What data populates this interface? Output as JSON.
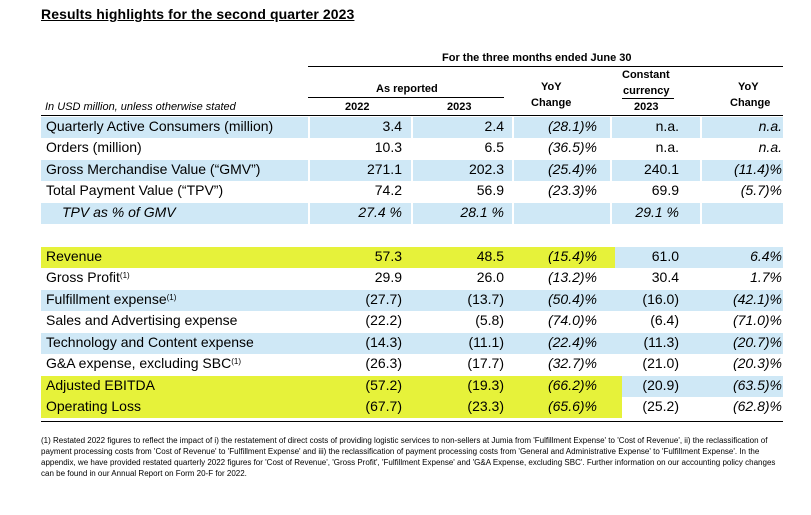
{
  "title": "Results highlights for the second quarter 2023",
  "header": {
    "period": "For the three months ended June 30",
    "as_reported": "As reported",
    "yoy_change_line1": "YoY",
    "yoy_change_line2": "Change",
    "constant_line1": "Constant",
    "constant_line2": "currency",
    "unit_note": "In USD million, unless otherwise stated",
    "col_2022": "2022",
    "col_2023": "2023",
    "col_cc_2023": "2023"
  },
  "rows": [
    {
      "label": "Quarterly Active Consumers (million)",
      "sup": "",
      "v2022": "3.4",
      "v2023": "2.4",
      "yoy": "(28.1)%",
      "cc2023": "n.a.",
      "ccyoy": "n.a."
    },
    {
      "label": "Orders (million)",
      "sup": "",
      "v2022": "10.3",
      "v2023": "6.5",
      "yoy": "(36.5)%",
      "cc2023": "n.a.",
      "ccyoy": "n.a."
    },
    {
      "label": "Gross Merchandise Value (“GMV”)",
      "sup": "",
      "v2022": "271.1",
      "v2023": "202.3",
      "yoy": "(25.4)%",
      "cc2023": "240.1",
      "ccyoy": "(11.4)%"
    },
    {
      "label": "Total Payment Value (“TPV”)",
      "sup": "",
      "v2022": "74.2",
      "v2023": "56.9",
      "yoy": "(23.3)%",
      "cc2023": "69.9",
      "ccyoy": "(5.7)%"
    },
    {
      "label": "TPV as % of GMV",
      "sup": "",
      "v2022": "27.4 %",
      "v2023": "28.1 %",
      "yoy": "",
      "cc2023": "29.1 %",
      "ccyoy": ""
    },
    {
      "label": "Revenue",
      "sup": "",
      "v2022": "57.3",
      "v2023": "48.5",
      "yoy": "(15.4)%",
      "cc2023": "61.0",
      "ccyoy": "6.4%"
    },
    {
      "label": "Gross Profit",
      "sup": "(1)",
      "v2022": "29.9",
      "v2023": "26.0",
      "yoy": "(13.2)%",
      "cc2023": "30.4",
      "ccyoy": "1.7%"
    },
    {
      "label": "Fulfillment expense",
      "sup": "(1)",
      "v2022": "(27.7)",
      "v2023": "(13.7)",
      "yoy": "(50.4)%",
      "cc2023": "(16.0)",
      "ccyoy": "(42.1)%"
    },
    {
      "label": "Sales and Advertising expense",
      "sup": "",
      "v2022": "(22.2)",
      "v2023": "(5.8)",
      "yoy": "(74.0)%",
      "cc2023": "(6.4)",
      "ccyoy": "(71.0)%"
    },
    {
      "label": "Technology and Content expense",
      "sup": "",
      "v2022": "(14.3)",
      "v2023": "(11.1)",
      "yoy": "(22.4)%",
      "cc2023": "(11.3)",
      "ccyoy": "(20.7)%"
    },
    {
      "label": "G&A expense, excluding SBC",
      "sup": "(1)",
      "v2022": "(26.3)",
      "v2023": "(17.7)",
      "yoy": "(32.7)%",
      "cc2023": "(21.0)",
      "ccyoy": "(20.3)%"
    },
    {
      "label": "Adjusted EBITDA",
      "sup": "",
      "v2022": "(57.2)",
      "v2023": "(19.3)",
      "yoy": "(66.2)%",
      "cc2023": "(20.9)",
      "ccyoy": "(63.5)%"
    },
    {
      "label": "Operating Loss",
      "sup": "",
      "v2022": "(67.7)",
      "v2023": "(23.3)",
      "yoy": "(65.6)%",
      "cc2023": "(25.2)",
      "ccyoy": "(62.8)%"
    }
  ],
  "footnote": "(1) Restated 2022 figures to reflect the impact of i) the restatement of direct costs of providing logistic services to non-sellers at Jumia from 'Fulfillment Expense' to 'Cost of Revenue', ii) the reclassification of payment processing costs from 'Cost of Revenue' to 'Fulfillment Expense' and iii) the reclassification of payment processing costs from 'General and Administrative Expense' to 'Fulfillment Expense'. In the appendix, we have provided restated quarterly 2022 figures for 'Cost of Revenue', 'Gross Profit', 'Fulfillment Expense' and 'G&A Expense, excluding SBC'. Further information on our accounting policy changes can be found in our Annual Report on Form 20-F for 2022.",
  "colors": {
    "light_blue": "#cfe8f6",
    "highlight": "#e6f23a"
  }
}
